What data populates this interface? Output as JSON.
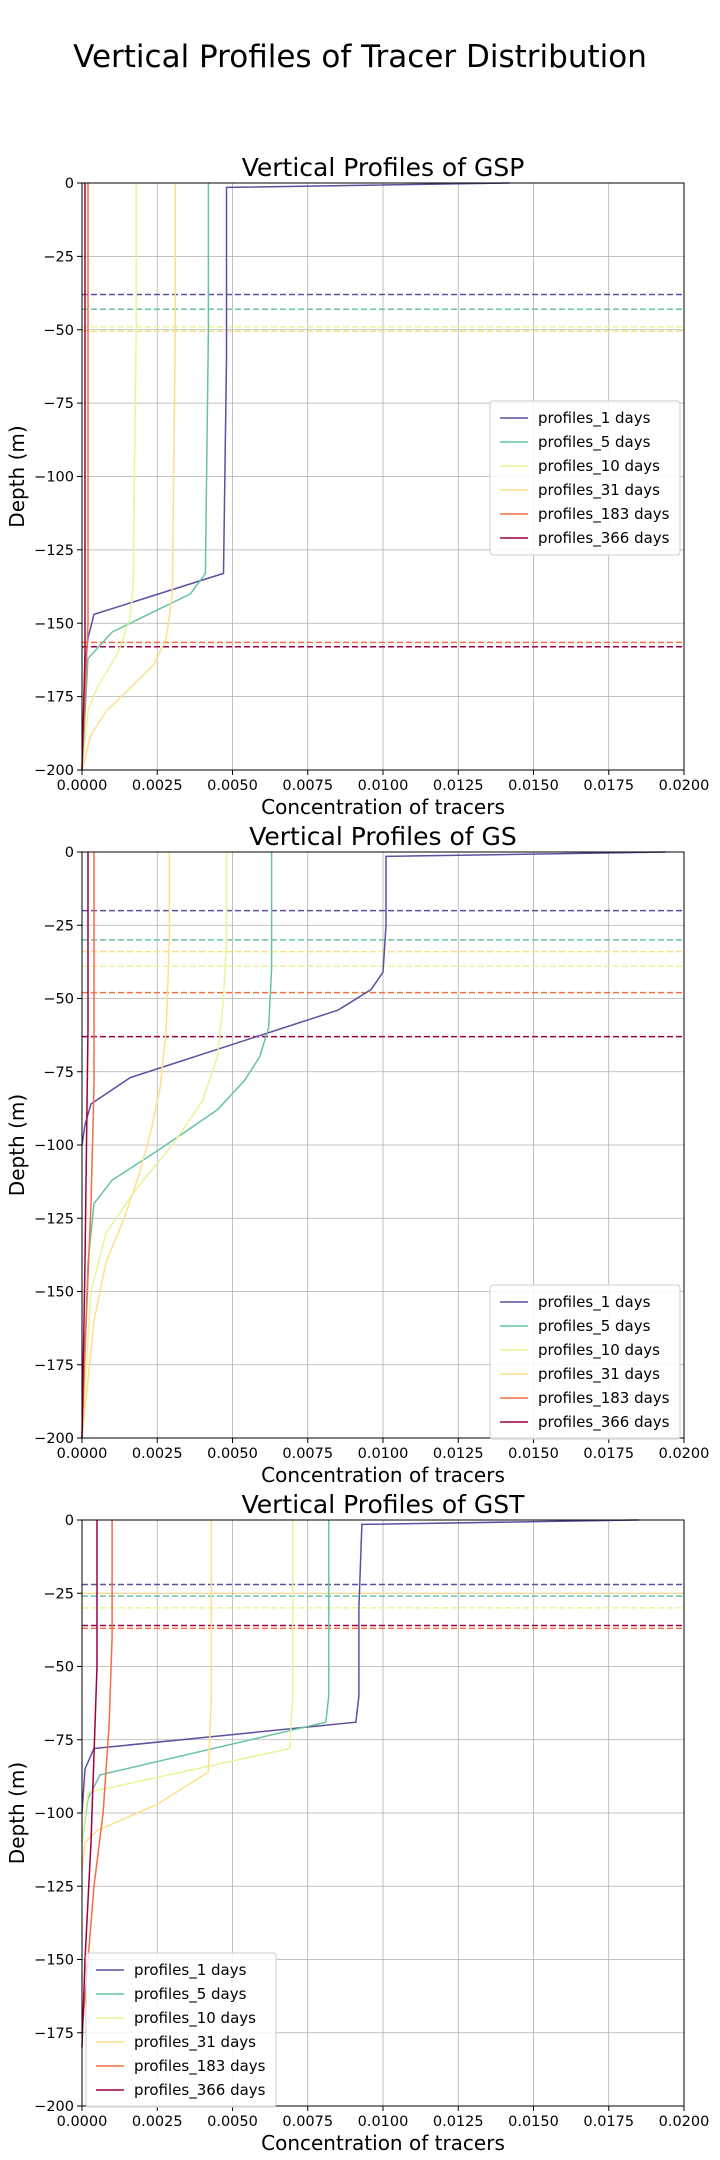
{
  "figure": {
    "suptitle": "Vertical Profiles of Tracer Distribution"
  },
  "legend_labels": [
    "profiles_1 days",
    "profiles_5 days",
    "profiles_10 days",
    "profiles_31 days",
    "profiles_183 days",
    "profiles_366 days"
  ],
  "series_colors": [
    "#5e4fa2",
    "#66c2a5",
    "#e6f598",
    "#fee08b",
    "#f46d43",
    "#9e0142"
  ],
  "chart_data": [
    {
      "type": "line",
      "title": "Vertical Profiles of GSP",
      "xlabel": "Concentration of tracers",
      "ylabel": "Depth (m)",
      "xlim": [
        0,
        0.02
      ],
      "ylim": [
        -200,
        0
      ],
      "xticks": [
        "0.0000",
        "0.0025",
        "0.0050",
        "0.0075",
        "0.0100",
        "0.0125",
        "0.0150",
        "0.0175",
        "0.0200"
      ],
      "yticks": [
        "0",
        "−25",
        "−50",
        "−75",
        "−100",
        "−125",
        "−150",
        "−175",
        "−200"
      ],
      "grid": true,
      "legend_position": "center-right",
      "series": [
        {
          "name": "profiles_1 days",
          "x": [
            0.0142,
            0.0048,
            0.0048,
            0.0047,
            0.0004,
            0.0002,
            0.0001,
            0.0
          ],
          "y": [
            0,
            -1.5,
            -60,
            -133,
            -147,
            -155,
            -165,
            -200
          ]
        },
        {
          "name": "profiles_5 days",
          "x": [
            0.0042,
            0.0042,
            0.0042,
            0.0041,
            0.0036,
            0.0022,
            0.001,
            0.0002,
            0.0
          ],
          "y": [
            0,
            -5,
            -50,
            -133,
            -140,
            -147,
            -153,
            -162,
            -200
          ]
        },
        {
          "name": "profiles_10 days",
          "x": [
            0.0018,
            0.0018,
            0.0017,
            0.0016,
            0.0012,
            0.0005,
            0.0002,
            0.0
          ],
          "y": [
            0,
            -50,
            -137,
            -148,
            -160,
            -172,
            -180,
            -200
          ]
        },
        {
          "name": "profiles_31 days",
          "x": [
            0.0031,
            0.0031,
            0.003,
            0.0028,
            0.0024,
            0.0016,
            0.0008,
            0.0003,
            0.0
          ],
          "y": [
            0,
            -50,
            -140,
            -155,
            -164,
            -172,
            -180,
            -188,
            -200
          ]
        },
        {
          "name": "profiles_183 days",
          "x": [
            0.0002,
            0.0002,
            0.0002,
            0.0001,
            0.0
          ],
          "y": [
            0,
            -100,
            -150,
            -175,
            -200
          ]
        },
        {
          "name": "profiles_366 days",
          "x": [
            0.0001,
            0.0001,
            0.0001,
            0.0
          ],
          "y": [
            0,
            -100,
            -160,
            -200
          ]
        }
      ],
      "hlines": [
        {
          "series": "profiles_1 days",
          "y": -38
        },
        {
          "series": "profiles_5 days",
          "y": -43
        },
        {
          "series": "profiles_10 days",
          "y": -49
        },
        {
          "series": "profiles_31 days",
          "y": -50.5
        },
        {
          "series": "profiles_183 days",
          "y": -156.5
        },
        {
          "series": "profiles_366 days",
          "y": -158
        }
      ]
    },
    {
      "type": "line",
      "title": "Vertical Profiles of GS",
      "xlabel": "Concentration of tracers",
      "ylabel": "Depth (m)",
      "xlim": [
        0,
        0.02
      ],
      "ylim": [
        -200,
        0
      ],
      "xticks": [
        "0.0000",
        "0.0025",
        "0.0050",
        "0.0075",
        "0.0100",
        "0.0125",
        "0.0150",
        "0.0175",
        "0.0200"
      ],
      "yticks": [
        "0",
        "−25",
        "−50",
        "−75",
        "−100",
        "−125",
        "−150",
        "−175",
        "−200"
      ],
      "grid": true,
      "legend_position": "lower-right",
      "series": [
        {
          "name": "profiles_1 days",
          "x": [
            0.0194,
            0.0101,
            0.0101,
            0.01,
            0.0096,
            0.0085,
            0.0016,
            0.0003,
            0.0001,
            0.0
          ],
          "y": [
            0,
            -1.5,
            -25,
            -41,
            -47,
            -54,
            -77,
            -86,
            -93,
            -100
          ]
        },
        {
          "name": "profiles_5 days",
          "x": [
            0.0063,
            0.0063,
            0.0063,
            0.0062,
            0.0059,
            0.0054,
            0.0045,
            0.0025,
            0.001,
            0.0004,
            0.0002,
            0.0
          ],
          "y": [
            0,
            -20,
            -40,
            -60,
            -70,
            -78,
            -88,
            -102,
            -112,
            -120,
            -140,
            -200
          ]
        },
        {
          "name": "profiles_10 days",
          "x": [
            0.0048,
            0.0048,
            0.0047,
            0.0045,
            0.004,
            0.003,
            0.0018,
            0.0008,
            0.0003,
            0.0
          ],
          "y": [
            0,
            -30,
            -50,
            -70,
            -85,
            -100,
            -115,
            -130,
            -150,
            -200
          ]
        },
        {
          "name": "profiles_31 days",
          "x": [
            0.0029,
            0.0029,
            0.0028,
            0.0026,
            0.0023,
            0.0019,
            0.0014,
            0.0008,
            0.0004,
            0.0
          ],
          "y": [
            0,
            -30,
            -60,
            -80,
            -95,
            -110,
            -125,
            -140,
            -160,
            -200
          ]
        },
        {
          "name": "profiles_183 days",
          "x": [
            0.0004,
            0.0004,
            0.0004,
            0.0003,
            0.0001,
            0.0
          ],
          "y": [
            0,
            -50,
            -80,
            -120,
            -170,
            -200
          ]
        },
        {
          "name": "profiles_366 days",
          "x": [
            0.0002,
            0.0002,
            0.0001,
            0.0
          ],
          "y": [
            0,
            -60,
            -140,
            -200
          ]
        }
      ],
      "hlines": [
        {
          "series": "profiles_1 days",
          "y": -20
        },
        {
          "series": "profiles_5 days",
          "y": -30
        },
        {
          "series": "profiles_10 days",
          "y": -39
        },
        {
          "series": "profiles_31 days",
          "y": -34
        },
        {
          "series": "profiles_183 days",
          "y": -48
        },
        {
          "series": "profiles_366 days",
          "y": -63
        }
      ]
    },
    {
      "type": "line",
      "title": "Vertical Profiles of GST",
      "xlabel": "Concentration of tracers",
      "ylabel": "Depth (m)",
      "xlim": [
        0,
        0.02
      ],
      "ylim": [
        -200,
        0
      ],
      "xticks": [
        "0.0000",
        "0.0025",
        "0.0050",
        "0.0075",
        "0.0100",
        "0.0125",
        "0.0150",
        "0.0175",
        "0.0200"
      ],
      "yticks": [
        "0",
        "−25",
        "−50",
        "−75",
        "−100",
        "−125",
        "−150",
        "−175",
        "−200"
      ],
      "grid": true,
      "legend_position": "lower-left",
      "series": [
        {
          "name": "profiles_1 days",
          "x": [
            0.0185,
            0.0093,
            0.0092,
            0.0092,
            0.0091,
            0.0004,
            0.0001,
            0.0
          ],
          "y": [
            0,
            -1.5,
            -30,
            -60,
            -69,
            -78,
            -85,
            -100
          ]
        },
        {
          "name": "profiles_5 days",
          "x": [
            0.0082,
            0.0082,
            0.0082,
            0.0081,
            0.0006,
            0.0002,
            0.0
          ],
          "y": [
            0,
            -30,
            -60,
            -69,
            -87,
            -95,
            -110
          ]
        },
        {
          "name": "profiles_10 days",
          "x": [
            0.007,
            0.007,
            0.007,
            0.0069,
            0.0002,
            0.0
          ],
          "y": [
            0,
            -30,
            -60,
            -78,
            -93,
            -110
          ]
        },
        {
          "name": "profiles_31 days",
          "x": [
            0.0043,
            0.0043,
            0.0043,
            0.0042,
            0.0025,
            0.0005,
            0.0001,
            0.0
          ],
          "y": [
            0,
            -30,
            -60,
            -86,
            -97,
            -106,
            -110,
            -120
          ]
        },
        {
          "name": "profiles_183 days",
          "x": [
            0.001,
            0.001,
            0.0009,
            0.0007,
            0.0004,
            0.0002,
            0.0
          ],
          "y": [
            0,
            -40,
            -70,
            -100,
            -125,
            -150,
            -175
          ]
        },
        {
          "name": "profiles_366 days",
          "x": [
            0.0005,
            0.0005,
            0.0004,
            0.0003,
            0.0001,
            0.0
          ],
          "y": [
            0,
            -50,
            -80,
            -110,
            -150,
            -180
          ]
        }
      ],
      "hlines": [
        {
          "series": "profiles_1 days",
          "y": -22
        },
        {
          "series": "profiles_5 days",
          "y": -26
        },
        {
          "series": "profiles_10 days",
          "y": -30
        },
        {
          "series": "profiles_31 days",
          "y": -25
        },
        {
          "series": "profiles_183 days",
          "y": -37
        },
        {
          "series": "profiles_366 days",
          "y": -36
        }
      ]
    }
  ]
}
